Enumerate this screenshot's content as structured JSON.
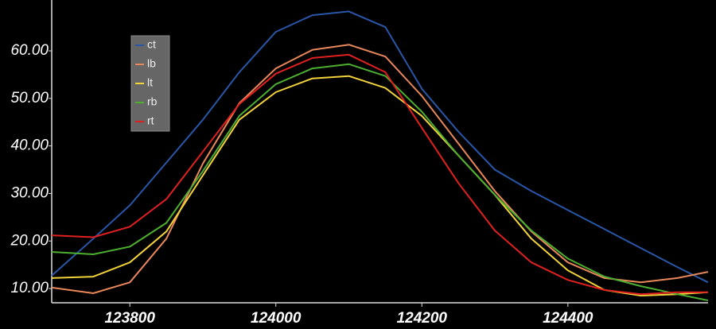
{
  "chart_data": {
    "type": "line",
    "x": [
      123693,
      123750,
      123800,
      123850,
      123900,
      123950,
      124000,
      124050,
      124100,
      124150,
      124200,
      124250,
      124300,
      124350,
      124400,
      124450,
      124500,
      124550,
      124592
    ],
    "series": [
      {
        "name": "ct",
        "color": "#2a56a8",
        "values": [
          12.7,
          20.5,
          27.5,
          36.5,
          45.5,
          55.5,
          64,
          67.5,
          68.3,
          65,
          52,
          43,
          35,
          30.5,
          26.5,
          22.5,
          18.5,
          14.5,
          11.3
        ]
      },
      {
        "name": "lb",
        "color": "#e8875a",
        "values": [
          10.2,
          9,
          11.3,
          20.5,
          36.3,
          49,
          56.3,
          60.2,
          61.3,
          58.8,
          50.5,
          40.5,
          30.5,
          22,
          15.5,
          12.2,
          11.3,
          12.2,
          13.5
        ]
      },
      {
        "name": "lt",
        "color": "#f2d23a",
        "values": [
          12.2,
          12.5,
          15.5,
          22,
          33.8,
          45.5,
          51.3,
          54.2,
          54.7,
          52.2,
          46.3,
          38,
          29.7,
          20.5,
          13.8,
          9.7,
          8.5,
          8.8,
          9.2
        ]
      },
      {
        "name": "rb",
        "color": "#4caf30",
        "values": [
          17.7,
          17.2,
          18.8,
          23.8,
          34.7,
          46.3,
          53,
          56.3,
          57.2,
          54.7,
          47.2,
          38,
          29.7,
          22.2,
          16.3,
          12.5,
          10.5,
          8.8,
          7.5
        ]
      },
      {
        "name": "rt",
        "color": "#e02020",
        "values": [
          21.2,
          20.8,
          23,
          28.8,
          38.8,
          48.8,
          55.2,
          58.5,
          59.2,
          55.5,
          43.8,
          32.2,
          22.2,
          15.5,
          11.8,
          9.7,
          8.8,
          9.2,
          9.2
        ]
      }
    ],
    "xlim": [
      123693,
      124592
    ],
    "xticks": [
      123800,
      124000,
      124200,
      124400
    ],
    "ylim": [
      7,
      70.7
    ],
    "yticks": [
      {
        "value": 10,
        "label": "10.00"
      },
      {
        "value": 20,
        "label": "20.00"
      },
      {
        "value": 30,
        "label": "30.00"
      },
      {
        "value": 40,
        "label": "40.00"
      },
      {
        "value": 50,
        "label": "50.00"
      },
      {
        "value": 60,
        "label": "60.00"
      }
    ],
    "legend": "top-left"
  }
}
